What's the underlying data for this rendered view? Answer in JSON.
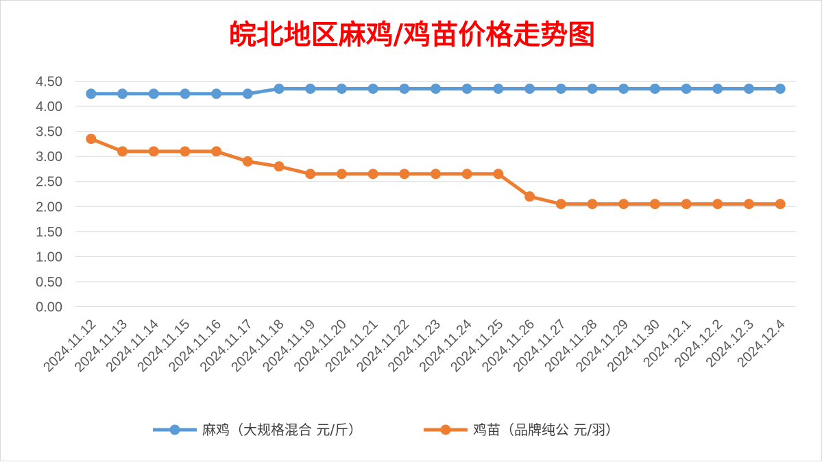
{
  "chart_data": {
    "type": "line",
    "title": "皖北地区麻鸡/鸡苗价格走势图",
    "title_color": "#ff0000",
    "categories": [
      "2024.11.12",
      "2024.11.13",
      "2024.11.14",
      "2024.11.15",
      "2024.11.16",
      "2024.11.17",
      "2024.11.18",
      "2024.11.19",
      "2024.11.20",
      "2024.11.21",
      "2024.11.22",
      "2024.11.23",
      "2024.11.24",
      "2024.11.25",
      "2024.11.26",
      "2024.11.27",
      "2024.11.28",
      "2024.11.29",
      "2024.11.30",
      "2024.12.1",
      "2024.12.2",
      "2024.12.3",
      "2024.12.4"
    ],
    "series": [
      {
        "name": "麻鸡（大规格混合 元/斤）",
        "color": "#5b9bd5",
        "values": [
          4.25,
          4.25,
          4.25,
          4.25,
          4.25,
          4.25,
          4.35,
          4.35,
          4.35,
          4.35,
          4.35,
          4.35,
          4.35,
          4.35,
          4.35,
          4.35,
          4.35,
          4.35,
          4.35,
          4.35,
          4.35,
          4.35,
          4.35
        ]
      },
      {
        "name": "鸡苗（品牌纯公 元/羽）",
        "color": "#ed7d31",
        "values": [
          3.35,
          3.1,
          3.1,
          3.1,
          3.1,
          2.9,
          2.8,
          2.65,
          2.65,
          2.65,
          2.65,
          2.65,
          2.65,
          2.65,
          2.2,
          2.05,
          2.05,
          2.05,
          2.05,
          2.05,
          2.05,
          2.05,
          2.05
        ]
      }
    ],
    "ylim": [
      0,
      4.5
    ],
    "yticks": [
      "0.00",
      "0.50",
      "1.00",
      "1.50",
      "2.00",
      "2.50",
      "3.00",
      "3.50",
      "4.00",
      "4.50"
    ],
    "grid": true,
    "legend_position": "bottom"
  }
}
